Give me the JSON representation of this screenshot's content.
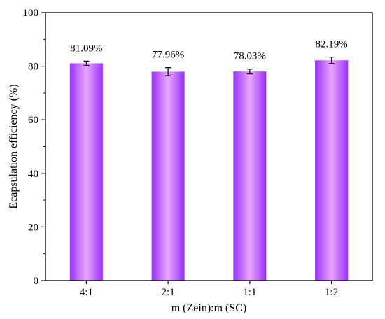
{
  "chart_data": {
    "type": "bar",
    "categories": [
      "4:1",
      "2:1",
      "1:1",
      "1:2"
    ],
    "values": [
      81.09,
      77.96,
      78.03,
      82.19
    ],
    "errors": [
      0.8,
      1.5,
      0.9,
      1.2
    ],
    "data_labels": [
      "81.09%",
      "77.96%",
      "78.03%",
      "82.19%"
    ],
    "title": "",
    "xlabel": "m (Zein):m (SC)",
    "ylabel": "Ecapsulation efficiency (%)",
    "ylim": [
      0,
      100
    ],
    "yticks": [
      0,
      20,
      40,
      60,
      80,
      100
    ],
    "grid": false,
    "legend": "none",
    "colors": {
      "bar_edge": "#9b30ff",
      "bar_center": "#e8a6ff",
      "axis": "#000000"
    }
  }
}
